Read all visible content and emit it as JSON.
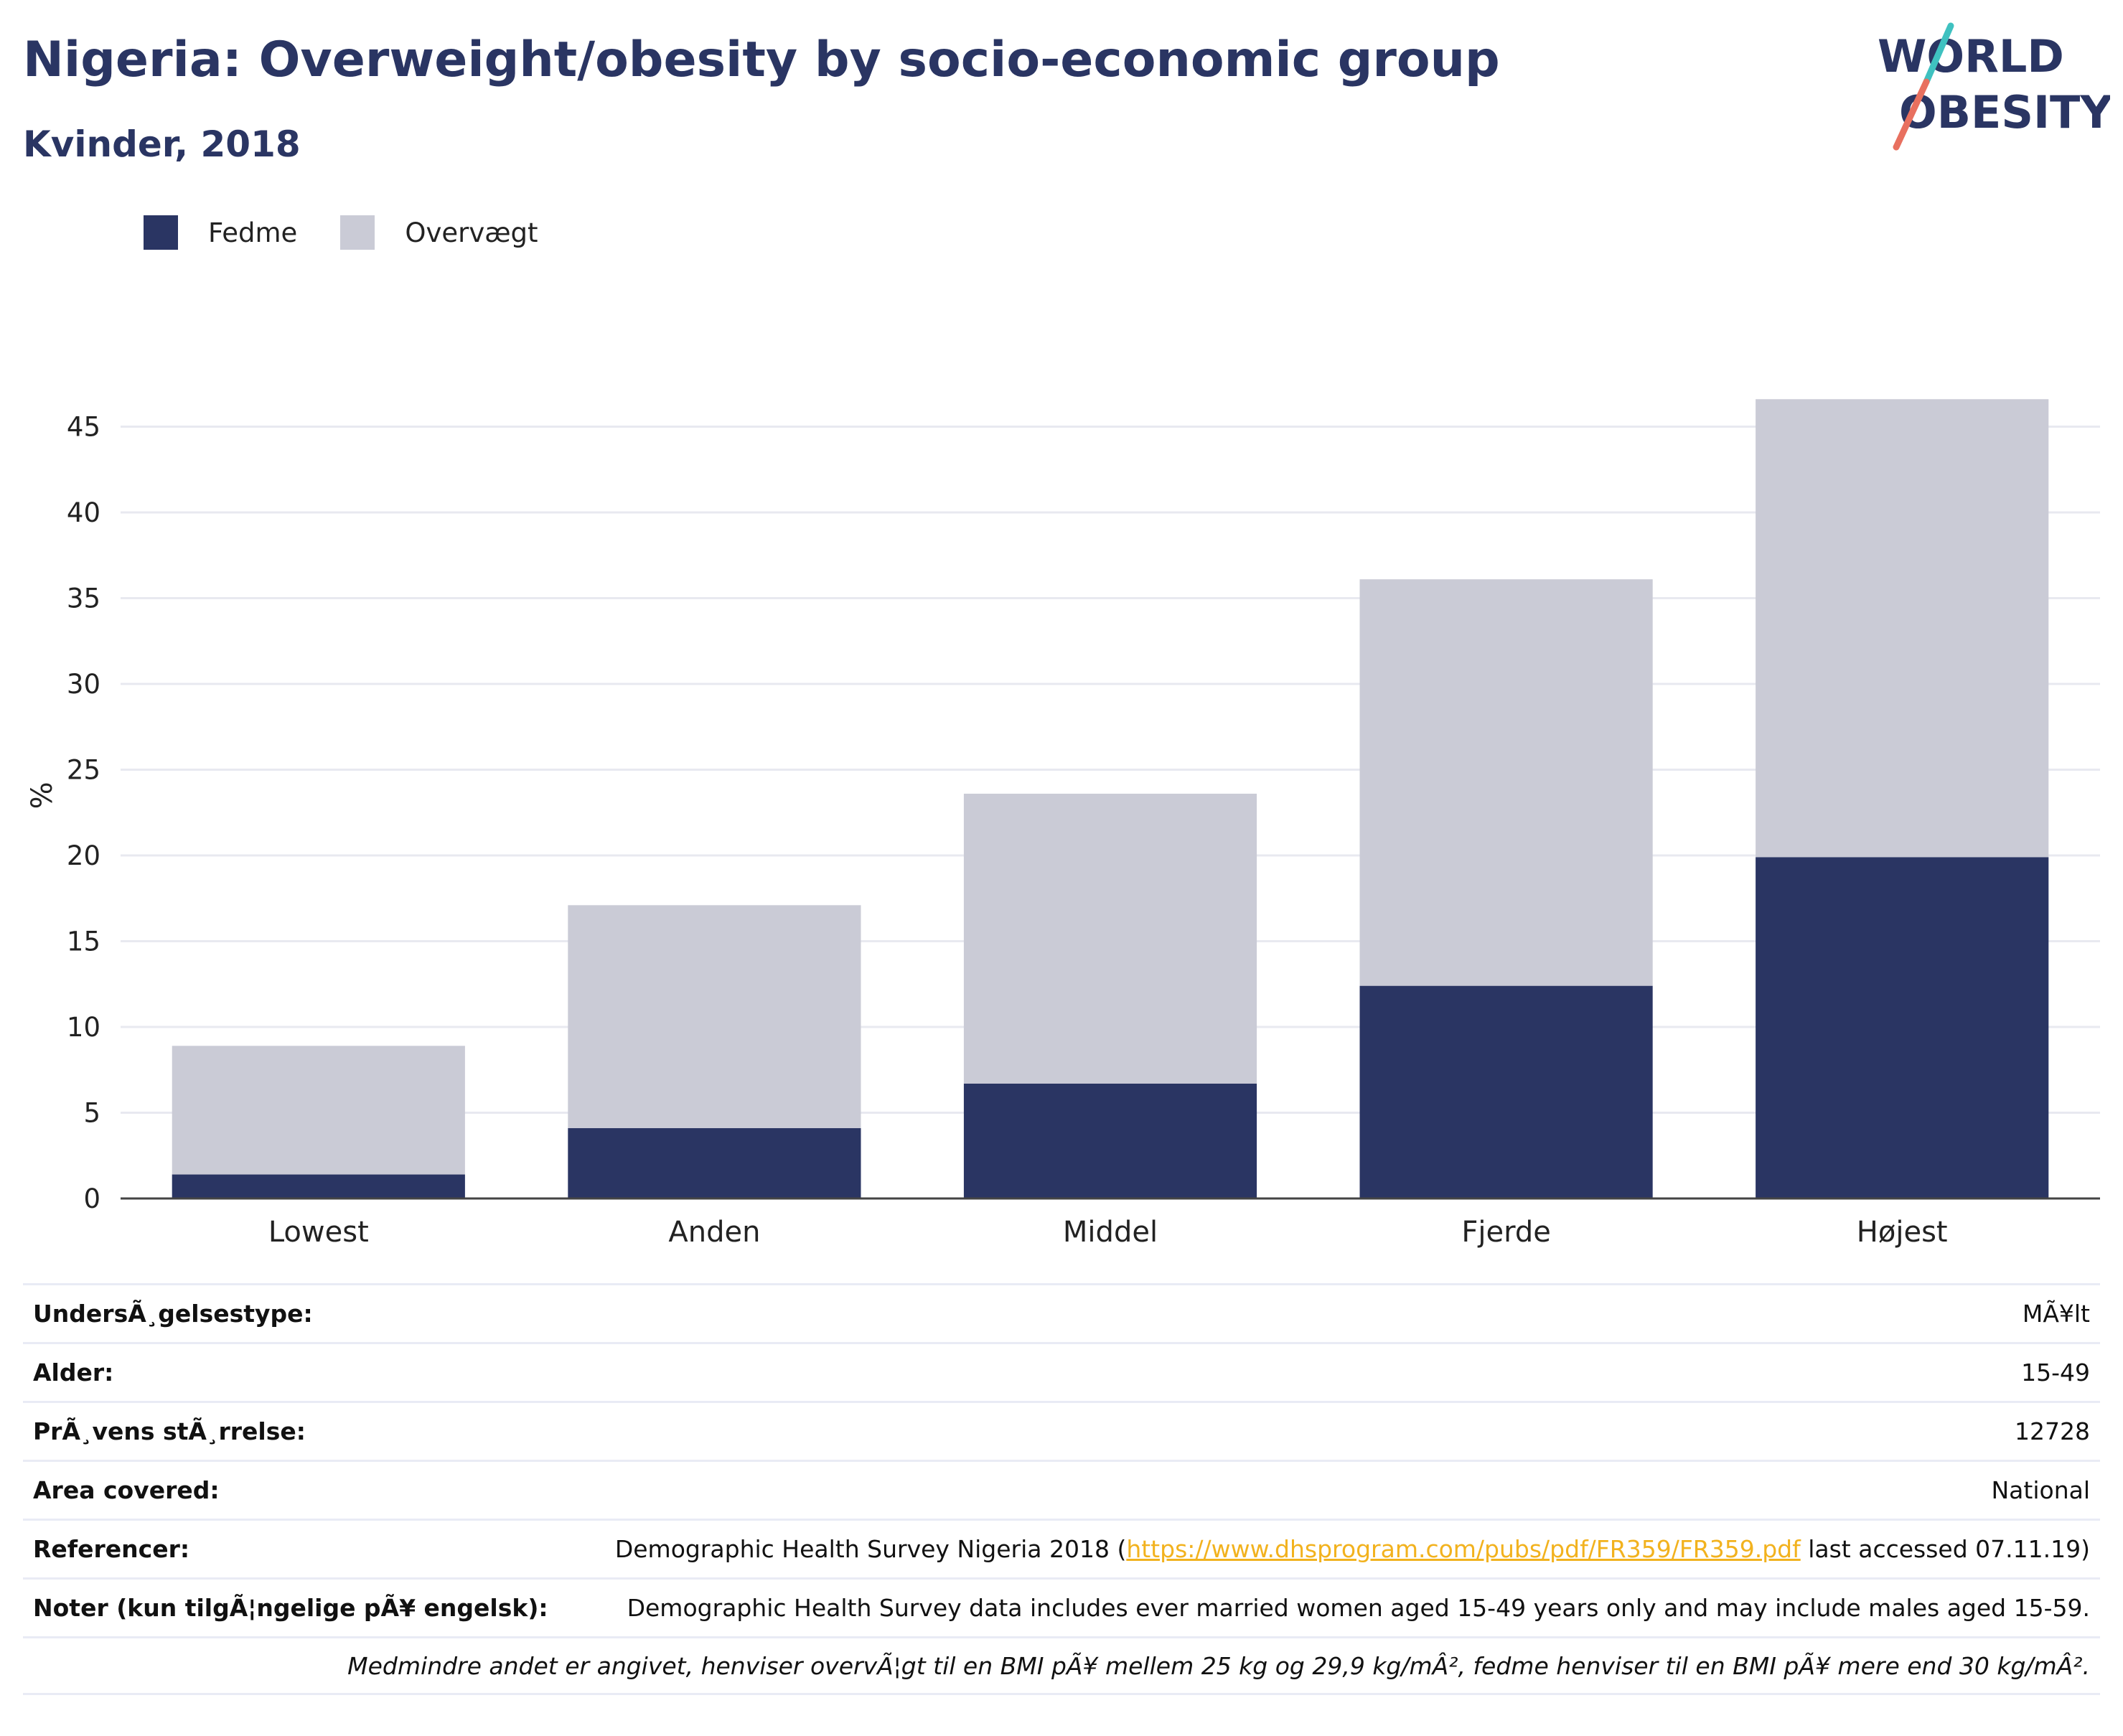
{
  "chart_data": {
    "type": "bar",
    "stacked": true,
    "title": "Nigeria: Overweight/obesity by socio-economic group",
    "subtitle": "Kvinder, 2018",
    "ylabel": "%",
    "xlabel": "",
    "ylim": [
      0,
      47
    ],
    "yticks": [
      0,
      5,
      10,
      15,
      20,
      25,
      30,
      35,
      40,
      45
    ],
    "categories": [
      "Lowest",
      "Anden",
      "Middel",
      "Fjerde",
      "Højest"
    ],
    "series": [
      {
        "name": "Fedme",
        "color": "#2a3563",
        "values": [
          1.4,
          4.1,
          6.7,
          12.4,
          19.9
        ]
      },
      {
        "name": "Overvægt",
        "color": "#cacbd6",
        "values": [
          7.5,
          13.0,
          16.9,
          23.7,
          26.7
        ]
      }
    ],
    "grid": true,
    "legend_position": "top-left"
  },
  "brand": {
    "logo_line1": "WORLD",
    "logo_line2": "OBESITY"
  },
  "info": {
    "rows": [
      {
        "label": "UndersÃ¸gelsestype:",
        "value": "MÃ¥lt"
      },
      {
        "label": "Alder:",
        "value": "15-49"
      },
      {
        "label": "PrÃ¸vens stÃ¸rrelse:",
        "value": "12728"
      },
      {
        "label": "Area covered:",
        "value": "National"
      }
    ],
    "reference": {
      "label": "Referencer:",
      "prefix": "Demographic Health Survey Nigeria 2018 (",
      "link": "https://www.dhsprogram.com/pubs/pdf/FR359/FR359.pdf",
      "suffix": " last accessed 07.11.19)"
    },
    "notes": {
      "label": "Noter (kun tilgÃ¦ngelige pÃ¥ engelsk):",
      "value": "Demographic Health Survey data includes ever married women aged 15-49 years only and may include males aged 15-59."
    },
    "footnote": "Medmindre andet er angivet, henviser overvÃ¦gt til en BMI pÃ¥ mellem 25 kg og 29,9 kg/mÂ², fedme henviser til en BMI pÃ¥ mere end 30 kg/mÂ²."
  }
}
